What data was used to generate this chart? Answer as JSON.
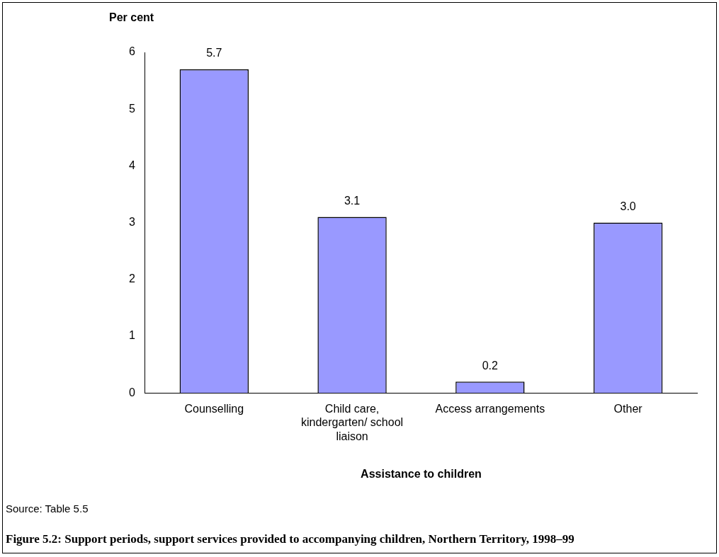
{
  "chart_data": {
    "type": "bar",
    "title": "Figure 5.2: Support periods, support services provided to accompanying children, Northern Territory, 1998–99",
    "ylabel": "Per cent",
    "xlabel": "Assistance to children",
    "annotations": [
      "Source: Table 5.5"
    ],
    "categories": [
      "Counselling",
      "Child care, kindergarten/ school liaison",
      "Access arrangements",
      "Other"
    ],
    "values": [
      5.7,
      3.1,
      0.2,
      3.0
    ],
    "color": "#9999ff",
    "value_labels": [
      "5.7",
      "3.1",
      "0.2",
      "3.0"
    ],
    "ylim": [
      0,
      6
    ],
    "yticks": [
      0,
      1,
      2,
      3,
      4,
      5,
      6
    ],
    "grid": false,
    "legend": false
  }
}
